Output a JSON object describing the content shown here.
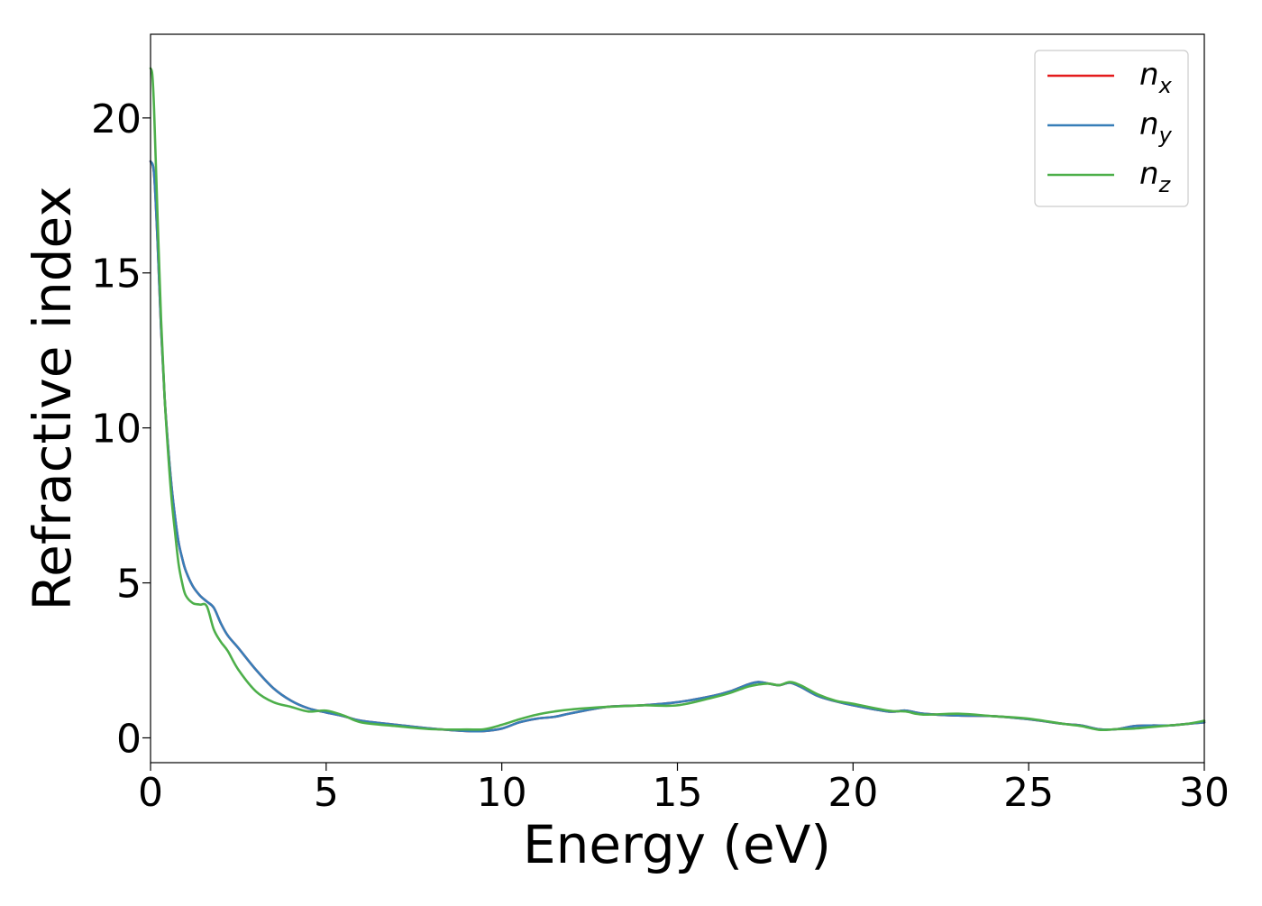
{
  "chart_data": {
    "type": "line",
    "title": "",
    "xlabel": "Energy (eV)",
    "ylabel": "Refractive index",
    "xlim": [
      0,
      30
    ],
    "ylim": [
      -0.8,
      22.7
    ],
    "xticks": [
      0,
      5,
      10,
      15,
      20,
      25,
      30
    ],
    "xtick_labels": [
      "0",
      "5",
      "10",
      "15",
      "20",
      "25",
      "30"
    ],
    "yticks": [
      0,
      5,
      10,
      15,
      20
    ],
    "ytick_labels": [
      "0",
      "5",
      "10",
      "15",
      "20"
    ],
    "grid": false,
    "legend_position": "top-right",
    "series": [
      {
        "name": "n_x",
        "label_base": "n",
        "label_sub": "x",
        "color": "#e41a1c",
        "x": [
          0,
          0.1,
          0.2,
          0.3,
          0.4,
          0.5,
          0.6,
          0.7,
          0.8,
          0.9,
          1.0,
          1.2,
          1.4,
          1.6,
          1.8,
          2.0,
          2.2,
          2.5,
          3.0,
          3.5,
          4.0,
          4.5,
          5.0,
          5.5,
          6.0,
          7.0,
          8.0,
          9.0,
          9.5,
          10.0,
          10.5,
          11.0,
          11.5,
          12.0,
          13.0,
          14.0,
          15.0,
          16.0,
          16.5,
          17.0,
          17.3,
          17.6,
          17.9,
          18.2,
          18.5,
          19.0,
          19.5,
          20.0,
          21.0,
          21.5,
          22.0,
          23.0,
          24.0,
          25.0,
          26.0,
          26.5,
          27.0,
          27.5,
          28.0,
          28.5,
          29.0,
          29.5,
          30.0
        ],
        "y": [
          18.6,
          18.2,
          16.0,
          13.2,
          11.0,
          9.4,
          8.1,
          7.1,
          6.3,
          5.8,
          5.4,
          4.9,
          4.6,
          4.4,
          4.2,
          3.7,
          3.3,
          2.9,
          2.2,
          1.6,
          1.2,
          0.95,
          0.82,
          0.7,
          0.55,
          0.42,
          0.3,
          0.22,
          0.22,
          0.3,
          0.5,
          0.62,
          0.68,
          0.8,
          1.0,
          1.05,
          1.15,
          1.35,
          1.5,
          1.72,
          1.8,
          1.75,
          1.7,
          1.78,
          1.65,
          1.35,
          1.18,
          1.05,
          0.85,
          0.88,
          0.78,
          0.72,
          0.7,
          0.6,
          0.45,
          0.4,
          0.28,
          0.28,
          0.38,
          0.4,
          0.4,
          0.45,
          0.5
        ]
      },
      {
        "name": "n_y",
        "label_base": "n",
        "label_sub": "y",
        "color": "#377eb8",
        "x": [
          0,
          0.1,
          0.2,
          0.3,
          0.4,
          0.5,
          0.6,
          0.7,
          0.8,
          0.9,
          1.0,
          1.2,
          1.4,
          1.6,
          1.8,
          2.0,
          2.2,
          2.5,
          3.0,
          3.5,
          4.0,
          4.5,
          5.0,
          5.5,
          6.0,
          7.0,
          8.0,
          9.0,
          9.5,
          10.0,
          10.5,
          11.0,
          11.5,
          12.0,
          13.0,
          14.0,
          15.0,
          16.0,
          16.5,
          17.0,
          17.3,
          17.6,
          17.9,
          18.2,
          18.5,
          19.0,
          19.5,
          20.0,
          21.0,
          21.5,
          22.0,
          23.0,
          24.0,
          25.0,
          26.0,
          26.5,
          27.0,
          27.5,
          28.0,
          28.5,
          29.0,
          29.5,
          30.0
        ],
        "y": [
          18.6,
          18.2,
          16.0,
          13.2,
          11.0,
          9.4,
          8.1,
          7.1,
          6.3,
          5.8,
          5.4,
          4.9,
          4.6,
          4.4,
          4.2,
          3.7,
          3.3,
          2.9,
          2.2,
          1.6,
          1.2,
          0.95,
          0.82,
          0.7,
          0.55,
          0.42,
          0.3,
          0.22,
          0.22,
          0.3,
          0.5,
          0.62,
          0.68,
          0.8,
          1.0,
          1.05,
          1.15,
          1.35,
          1.5,
          1.72,
          1.8,
          1.75,
          1.7,
          1.78,
          1.65,
          1.35,
          1.18,
          1.05,
          0.85,
          0.88,
          0.78,
          0.72,
          0.7,
          0.6,
          0.45,
          0.4,
          0.28,
          0.28,
          0.38,
          0.4,
          0.4,
          0.45,
          0.5
        ]
      },
      {
        "name": "n_z",
        "label_base": "n",
        "label_sub": "z",
        "color": "#4daf4a",
        "x": [
          0,
          0.05,
          0.1,
          0.2,
          0.3,
          0.4,
          0.5,
          0.6,
          0.7,
          0.8,
          0.9,
          1.0,
          1.2,
          1.4,
          1.6,
          1.8,
          2.0,
          2.2,
          2.5,
          3.0,
          3.5,
          4.0,
          4.5,
          5.0,
          5.5,
          6.0,
          7.0,
          8.0,
          9.0,
          9.5,
          10.0,
          10.5,
          11.0,
          11.5,
          12.0,
          13.0,
          14.0,
          15.0,
          16.0,
          16.5,
          17.0,
          17.3,
          17.6,
          17.9,
          18.2,
          18.5,
          19.0,
          19.5,
          20.0,
          21.0,
          21.5,
          22.0,
          23.0,
          24.0,
          25.0,
          26.0,
          26.5,
          27.0,
          27.5,
          28.0,
          28.5,
          29.0,
          29.5,
          30.0
        ],
        "y": [
          21.6,
          21.4,
          20.3,
          16.8,
          13.5,
          11.0,
          9.2,
          7.7,
          6.6,
          5.6,
          5.0,
          4.6,
          4.35,
          4.3,
          4.25,
          3.5,
          3.1,
          2.8,
          2.2,
          1.5,
          1.15,
          1.0,
          0.85,
          0.88,
          0.72,
          0.5,
          0.38,
          0.28,
          0.27,
          0.28,
          0.42,
          0.6,
          0.75,
          0.85,
          0.92,
          1.0,
          1.05,
          1.05,
          1.3,
          1.45,
          1.65,
          1.72,
          1.75,
          1.7,
          1.8,
          1.7,
          1.4,
          1.2,
          1.1,
          0.88,
          0.85,
          0.75,
          0.78,
          0.7,
          0.62,
          0.45,
          0.38,
          0.26,
          0.28,
          0.3,
          0.35,
          0.4,
          0.45,
          0.55
        ]
      }
    ]
  }
}
